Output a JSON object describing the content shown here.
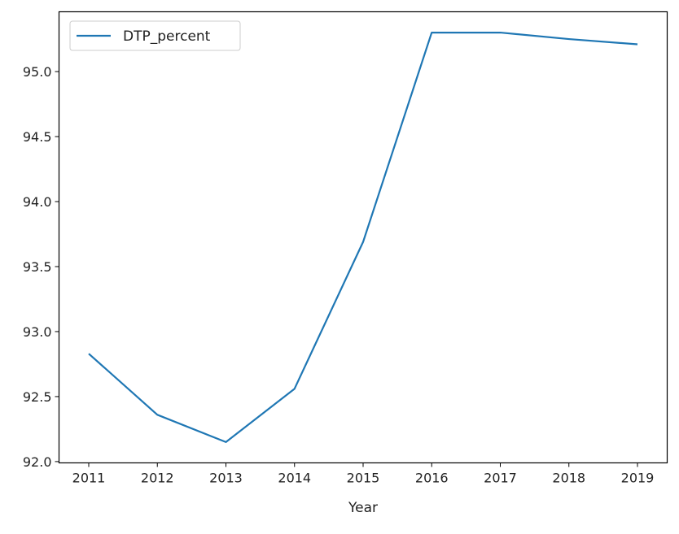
{
  "chart_data": {
    "type": "line",
    "title": "",
    "xlabel": "Year",
    "ylabel": "",
    "x": [
      2011,
      2012,
      2013,
      2014,
      2015,
      2016,
      2017,
      2018,
      2019
    ],
    "series": [
      {
        "name": "DTP_percent",
        "color": "#1f77b4",
        "values": [
          92.83,
          92.36,
          92.15,
          92.56,
          93.69,
          95.3,
          95.3,
          95.25,
          95.21
        ]
      }
    ],
    "xticks": [
      "2011",
      "2012",
      "2013",
      "2014",
      "2015",
      "2016",
      "2017",
      "2018",
      "2019"
    ],
    "yticks": [
      "92.0",
      "92.5",
      "93.0",
      "93.5",
      "94.0",
      "94.5",
      "95.0"
    ],
    "ylim": [
      91.99,
      95.46
    ],
    "grid": false,
    "legend_position": "upper left"
  }
}
